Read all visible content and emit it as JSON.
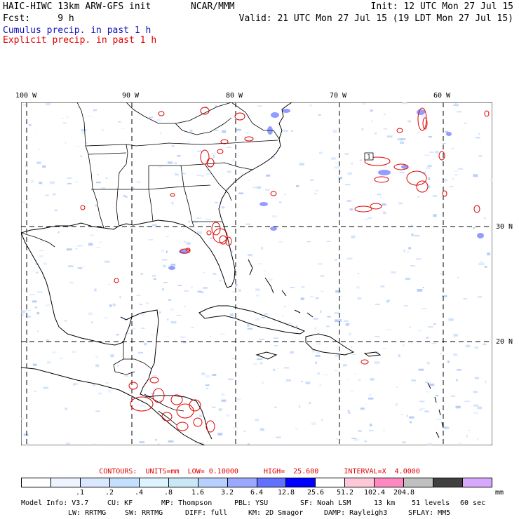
{
  "header": {
    "title_left": "HAIC-HIWC 13km ARW-GFS init",
    "org": "NCAR/MMM",
    "init": "Init: 12 UTC Mon 27 Jul 15",
    "fcst": "Fcst:     9 h",
    "valid": "Valid: 21 UTC Mon 27 Jul 15 (19 LDT Mon 27 Jul 15)",
    "cumulus_label": "Cumulus precip. in past 1 h",
    "explicit_label": "Explicit precip. in past 1 h",
    "cumulus_color": "#1010c0",
    "explicit_color": "#e00000"
  },
  "map": {
    "lon_labels": [
      "100 W",
      "90 W",
      "80 W",
      "70 W",
      "60 W"
    ],
    "lat_labels": [
      "30 N",
      "20 N"
    ],
    "contour_marker": "1"
  },
  "contours_line": "CONTOURS:  UNITS=mm  LOW= 0.10000      HIGH=  25.600      INTERVAL=X  4.0000",
  "scale": {
    "colors": [
      "#ffffff",
      "#eef4ff",
      "#d9e8ff",
      "#c4e0ff",
      "#dcf4ff",
      "#c8e8f8",
      "#b8d0ff",
      "#9aa8ff",
      "#6070ff",
      "#0000ff",
      "#ffffff",
      "#ffc8d8",
      "#ff88c0",
      "#c0c0c0",
      "#404040",
      "#d8a8ff"
    ],
    "labels": [
      ".1",
      ".2",
      ".4",
      ".8",
      "1.6",
      "3.2",
      "6.4",
      "12.8",
      "25.6",
      "51.2",
      "102.4",
      "204.8"
    ],
    "unit": "mm"
  },
  "model_info": {
    "line1": [
      "Model Info: V3.7",
      "CU: KF",
      "MP: Thompson",
      "PBL: YSU",
      "SF: Noah LSM",
      "13 km",
      "51 levels",
      "60 sec"
    ],
    "line2": [
      "LW: RRTMG",
      "SW: RRTMG",
      "DIFF: full",
      "KM: 2D Smagor",
      "DAMP: Rayleigh3",
      "SFLAY: MM5"
    ]
  }
}
